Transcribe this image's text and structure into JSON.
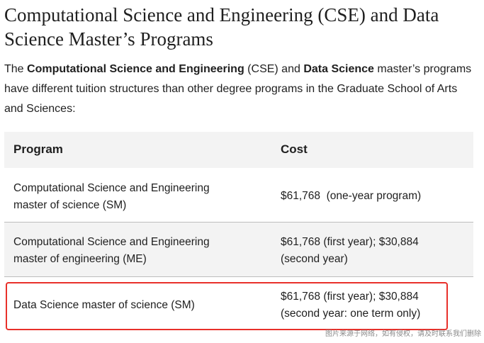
{
  "heading": "Computational Science and Engineering (CSE) and Data Science Master’s Programs",
  "intro": {
    "part1": "The ",
    "bold1": "Computational Science and Engineering",
    "part2": " (CSE) and ",
    "bold2": "Data Science",
    "part3": " master’s programs have different tuition structures than other degree programs in the Graduate School of Arts and Sciences:"
  },
  "table": {
    "headers": {
      "program": "Program",
      "cost": "Cost"
    },
    "rows": [
      {
        "program_line1": "Computational Science and Engineering",
        "program_line2": "master of science (SM)",
        "cost_line1": "$61,768  (one-year program)",
        "cost_line2": ""
      },
      {
        "program_line1": "Computational Science and Engineering",
        "program_line2": "master of engineering (ME)",
        "cost_line1": "$61,768 (first year); $30,884",
        "cost_line2": "(second year)"
      },
      {
        "program_line1": "Data Science master of science (SM)",
        "program_line2": "",
        "cost_line1": "$61,768 (first year); $30,884",
        "cost_line2": "(second year: one term only)"
      }
    ]
  },
  "watermark": "图片来源于网络，如有侵权，请及时联系我们删除",
  "colors": {
    "highlight_border": "#e8302a",
    "header_bg": "#f3f3f3",
    "row_alt_bg": "#f3f3f3",
    "text": "#1f1f1f"
  }
}
